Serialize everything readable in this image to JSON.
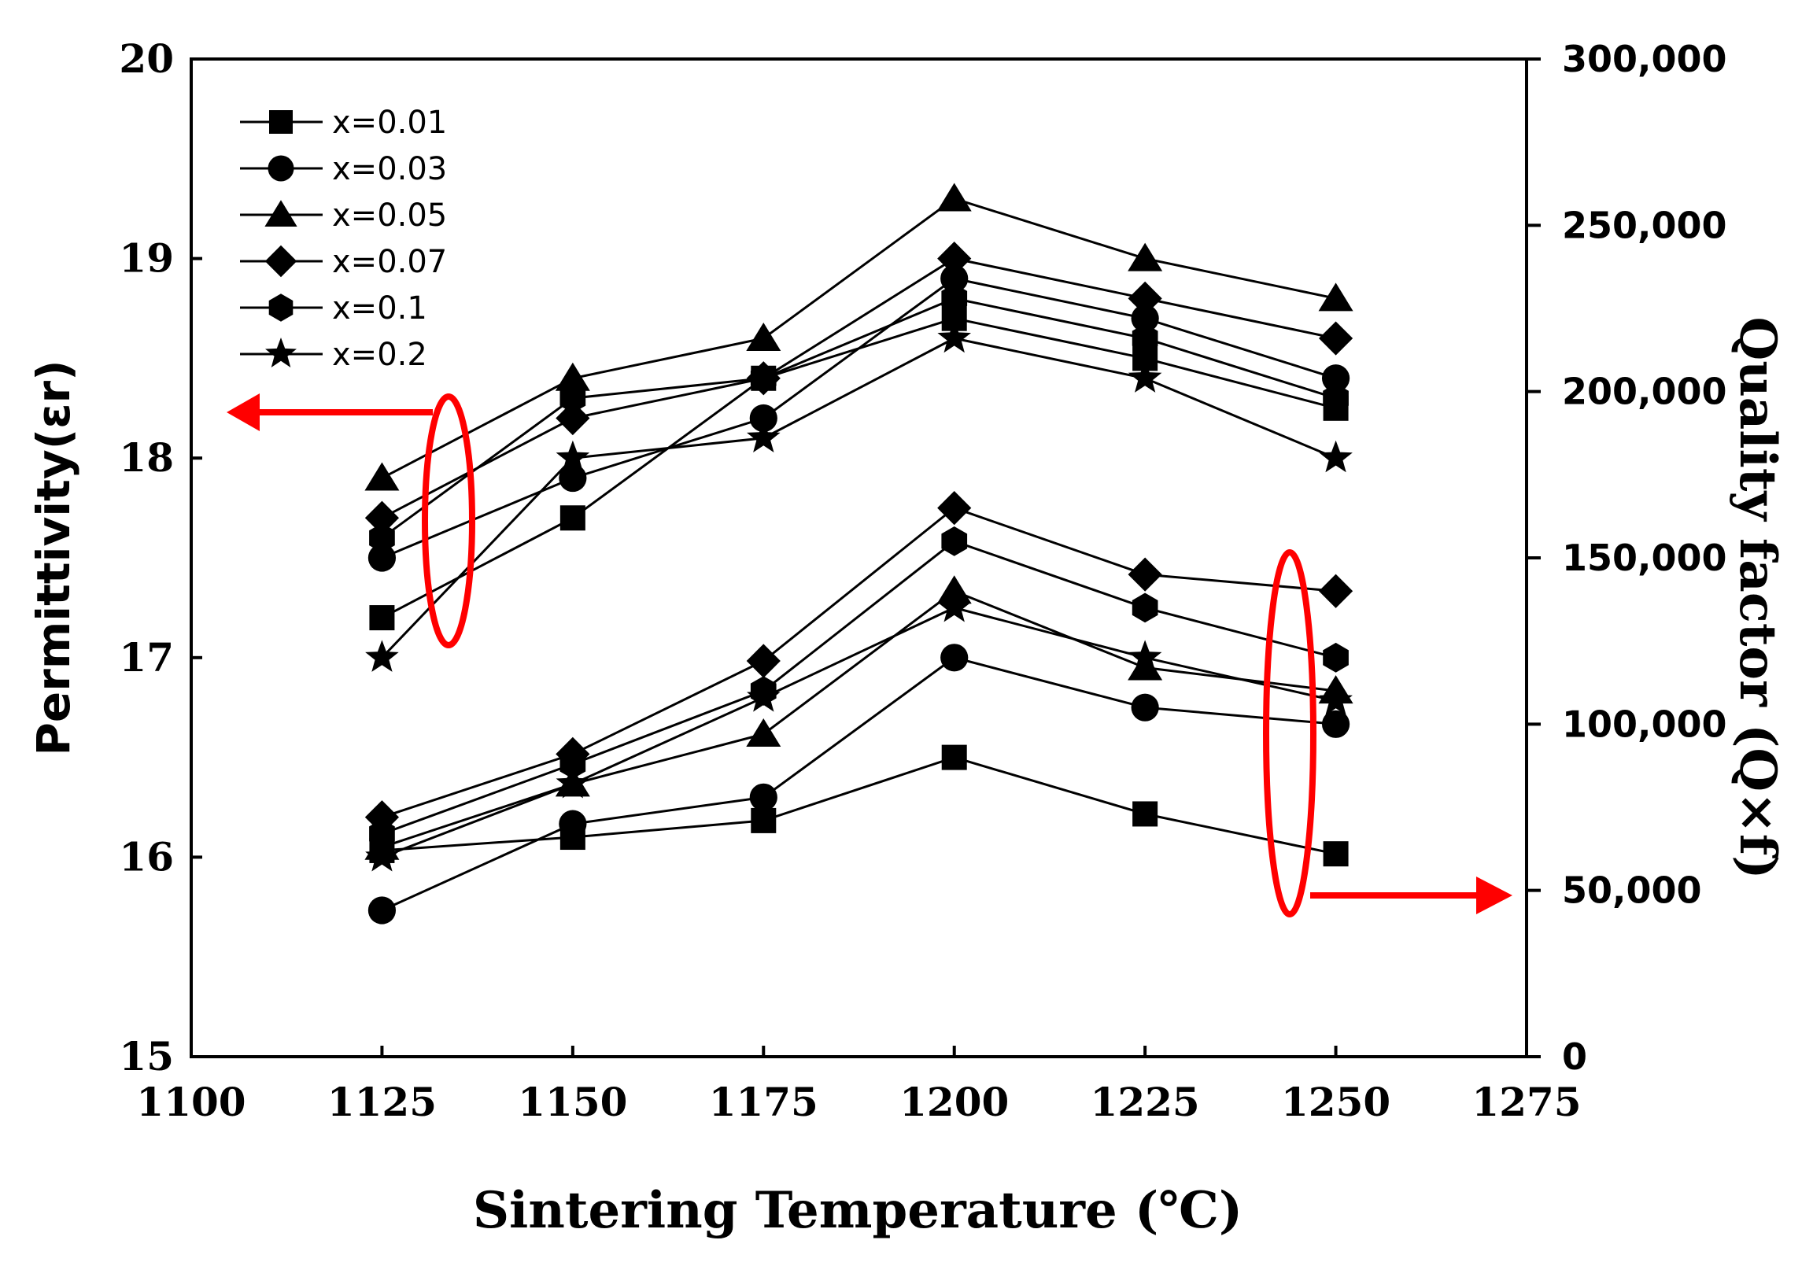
{
  "chart_data": {
    "type": "line",
    "title": "",
    "xlabel": "Sintering Temperature (℃)",
    "ylabel_left": "Permittivity(εr)",
    "ylabel_right": "Quality factor (Q×f)",
    "xlim": [
      1100,
      1275
    ],
    "ylim_left": [
      15,
      20
    ],
    "ylim_right": [
      0,
      300000
    ],
    "x_ticks": [
      "1100",
      "1125",
      "1150",
      "1175",
      "1200",
      "1225",
      "1250",
      "1275"
    ],
    "y_left_ticks": [
      "15",
      "16",
      "17",
      "18",
      "19",
      "20"
    ],
    "y_right_ticks": [
      "0",
      "50,000",
      "100,000",
      "150,000",
      "200,000",
      "250,000",
      "300,000"
    ],
    "legend_position": "top-left",
    "x": [
      1125,
      1150,
      1175,
      1200,
      1225,
      1250
    ],
    "permittivity_series": [
      {
        "name": "x=0.01",
        "marker": "square",
        "values": [
          17.2,
          17.7,
          18.4,
          18.7,
          18.5,
          18.25
        ]
      },
      {
        "name": "x=0.03",
        "marker": "circle",
        "values": [
          17.5,
          17.9,
          18.2,
          18.9,
          18.7,
          18.4
        ]
      },
      {
        "name": "x=0.05",
        "marker": "triangle",
        "values": [
          17.9,
          18.4,
          18.6,
          19.3,
          19.0,
          18.8
        ]
      },
      {
        "name": "x=0.07",
        "marker": "diamond",
        "values": [
          17.7,
          18.2,
          18.4,
          19.0,
          18.8,
          18.6
        ]
      },
      {
        "name": "x=0.1",
        "marker": "hexagon",
        "values": [
          17.6,
          18.3,
          18.4,
          18.8,
          18.6,
          18.3
        ]
      },
      {
        "name": "x=0.2",
        "marker": "star",
        "values": [
          17.0,
          18.0,
          18.1,
          18.6,
          18.4,
          18.0
        ]
      }
    ],
    "quality_factor_series": [
      {
        "name": "x=0.01",
        "marker": "square",
        "values": [
          62000,
          66000,
          71000,
          90000,
          73000,
          61000
        ]
      },
      {
        "name": "x=0.03",
        "marker": "circle",
        "values": [
          44000,
          70000,
          78000,
          120000,
          105000,
          100000
        ]
      },
      {
        "name": "x=0.05",
        "marker": "triangle",
        "values": [
          63000,
          82000,
          97000,
          140000,
          117000,
          110000
        ]
      },
      {
        "name": "x=0.07",
        "marker": "diamond",
        "values": [
          72000,
          91000,
          119000,
          165000,
          145000,
          140000
        ]
      },
      {
        "name": "x=0.1",
        "marker": "hexagon",
        "values": [
          67000,
          88000,
          110000,
          155000,
          135000,
          120000
        ]
      },
      {
        "name": "x=0.2",
        "marker": "star",
        "values": [
          60000,
          82000,
          108000,
          135000,
          120000,
          107000
        ]
      }
    ],
    "annotations": [
      {
        "type": "ellipse-arrow",
        "target": "left-axis",
        "color": "#ff0000"
      },
      {
        "type": "ellipse-arrow",
        "target": "right-axis",
        "color": "#ff0000"
      }
    ]
  }
}
